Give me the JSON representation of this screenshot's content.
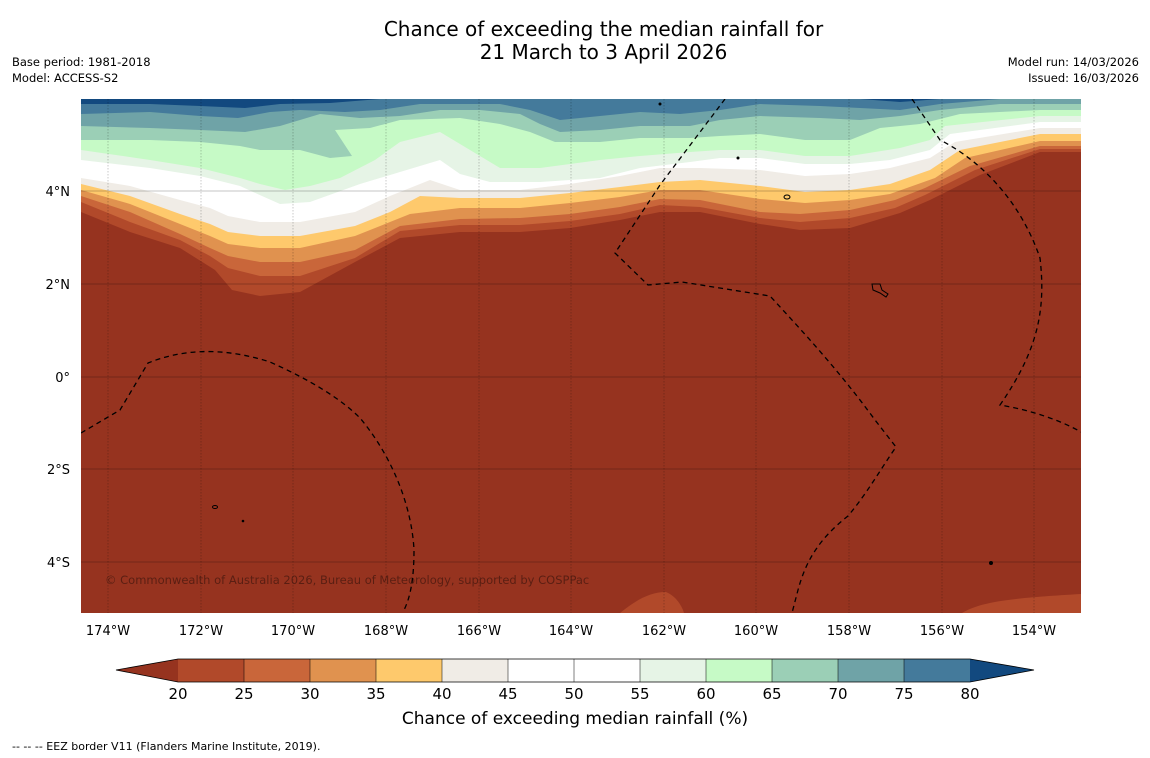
{
  "title": {
    "line1": "Chance of exceeding the median rainfall for",
    "line2": "21 March to 3 April 2026"
  },
  "meta": {
    "base_period": "Base period: 1981-2018",
    "model": "Model: ACCESS-S2",
    "model_run": "Model run: 14/03/2026",
    "issued": "Issued: 16/03/2026"
  },
  "map": {
    "lat_labels": [
      "4°N",
      "2°N",
      "0°",
      "2°S",
      "4°S"
    ],
    "lon_labels": [
      "174°W",
      "172°W",
      "170°W",
      "168°W",
      "166°W",
      "164°W",
      "162°W",
      "160°W",
      "158°W",
      "156°W",
      "154°W"
    ],
    "copyright": "© Commonwealth of Australia 2026, Bureau of Meteorology, supported by COSPPac",
    "background_color": "#96331f"
  },
  "colorbar": {
    "title": "Chance of exceeding median rainfall (%)",
    "ticks": [
      "20",
      "25",
      "30",
      "35",
      "40",
      "45",
      "50",
      "55",
      "60",
      "65",
      "70",
      "75",
      "80"
    ],
    "colors": [
      "#96331f",
      "#b1492a",
      "#c9663a",
      "#e0924f",
      "#fec96c",
      "#f0ece6",
      "#ffffff",
      "#ffffff",
      "#e6f4e6",
      "#c6fac6",
      "#9bcfb6",
      "#6fa3a7",
      "#447a9b",
      "#12497f"
    ]
  },
  "footnote": "--  --  -- EEZ border V11 (Flanders Marine Institute, 2019)."
}
